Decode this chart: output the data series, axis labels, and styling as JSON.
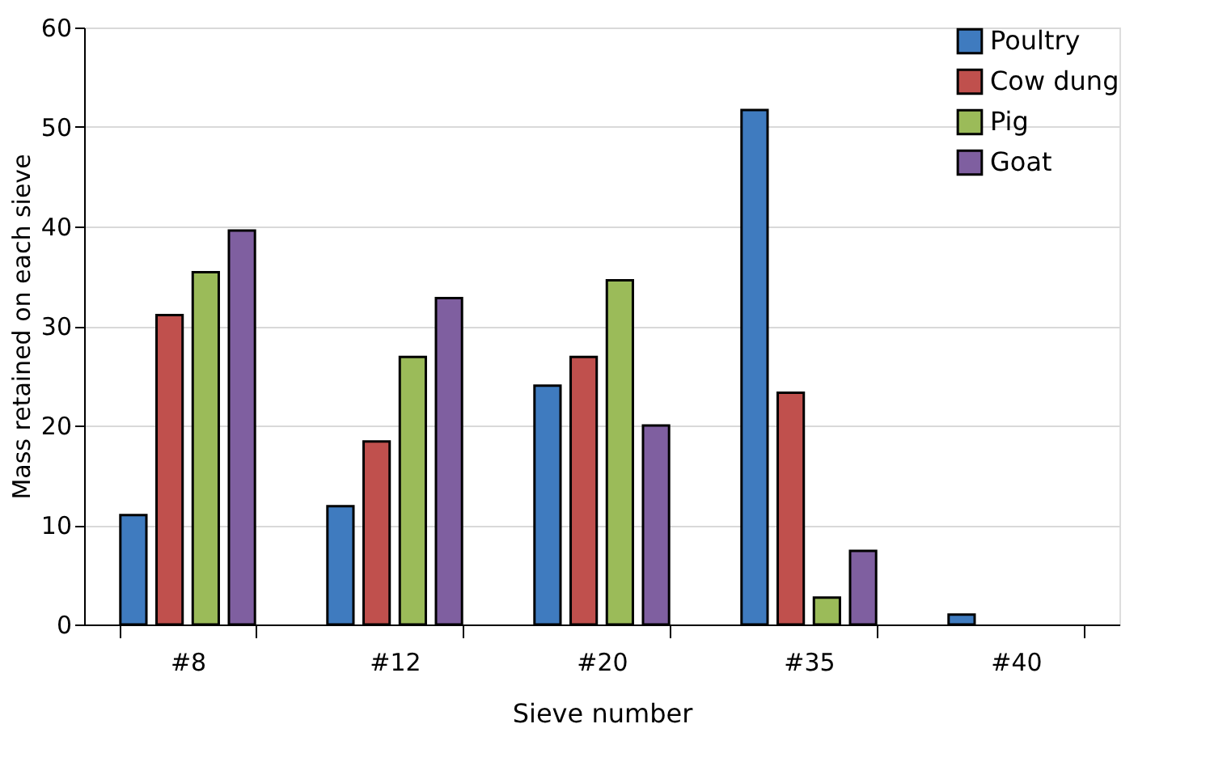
{
  "chart_data": {
    "type": "bar",
    "xlabel": "Sieve number",
    "ylabel": "Mass retained on each sieve",
    "categories": [
      "#8",
      "#12",
      "#20",
      "#35",
      "#40"
    ],
    "series": [
      {
        "name": "Poultry",
        "color": "#3f7bbf",
        "values": [
          11,
          11.9,
          24,
          51.7,
          1
        ]
      },
      {
        "name": "Cow dung",
        "color": "#c0504d",
        "values": [
          31.1,
          18.4,
          26.9,
          23.3,
          null
        ]
      },
      {
        "name": "Pig",
        "color": "#9bbb59",
        "values": [
          35.4,
          26.9,
          34.6,
          2.7,
          null
        ]
      },
      {
        "name": "Goat",
        "color": "#7f5fa0",
        "values": [
          39.6,
          32.8,
          20,
          7.4,
          null
        ]
      }
    ],
    "ylim": [
      0,
      60
    ],
    "yticks": [
      0,
      10,
      20,
      30,
      40,
      50,
      60
    ],
    "grid": "y",
    "legend": "top right"
  }
}
